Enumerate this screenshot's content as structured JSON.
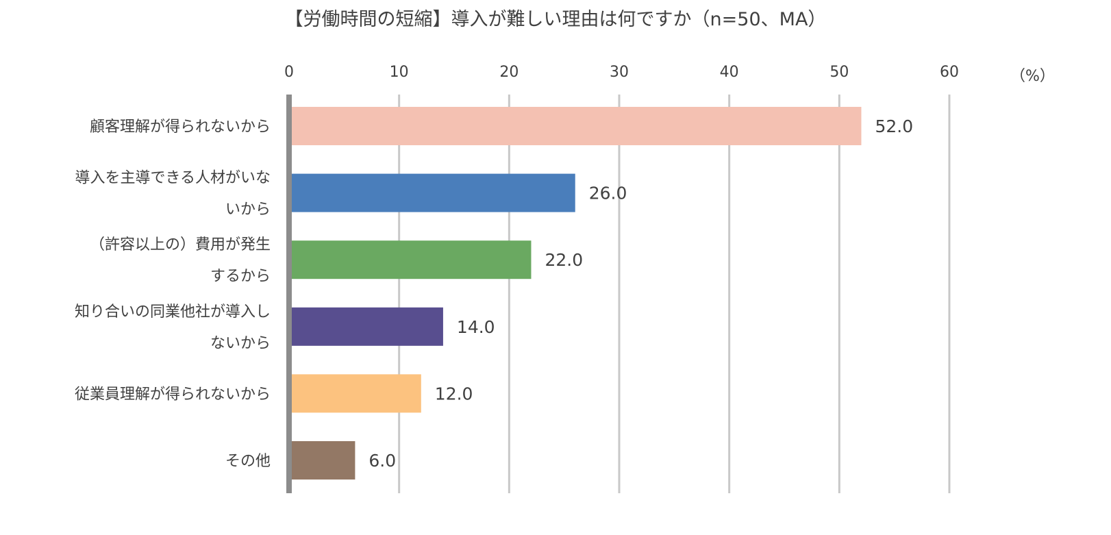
{
  "chart_data": {
    "type": "bar",
    "orientation": "horizontal",
    "title": "【労働時間の短縮】導入が難しい理由は何ですか（n=50、MA）",
    "unit_label": "（%）",
    "xlim": [
      0,
      60
    ],
    "ticks": [
      0,
      10,
      20,
      30,
      40,
      50,
      60
    ],
    "tick_labels": [
      "0",
      "10",
      "20",
      "30",
      "40",
      "50",
      "60"
    ],
    "axis_position": "top",
    "grid": true,
    "categories": [
      [
        "顧客理解が得られないから"
      ],
      [
        "導入を主導できる人材がいな",
        "いから"
      ],
      [
        "（許容以上の）費用が発生",
        "するから"
      ],
      [
        "知り合いの同業他社が導入し",
        "ないから"
      ],
      [
        "従業員理解が得られないから"
      ],
      [
        "その他"
      ]
    ],
    "values": [
      52.0,
      26.0,
      22.0,
      14.0,
      12.0,
      6.0
    ],
    "value_labels": [
      "52.0",
      "26.0",
      "22.0",
      "14.0",
      "12.0",
      "6.0"
    ],
    "colors": [
      "#f4c1b2",
      "#4a7ebb",
      "#6aa961",
      "#584e8f",
      "#fcc27f",
      "#937865"
    ]
  }
}
